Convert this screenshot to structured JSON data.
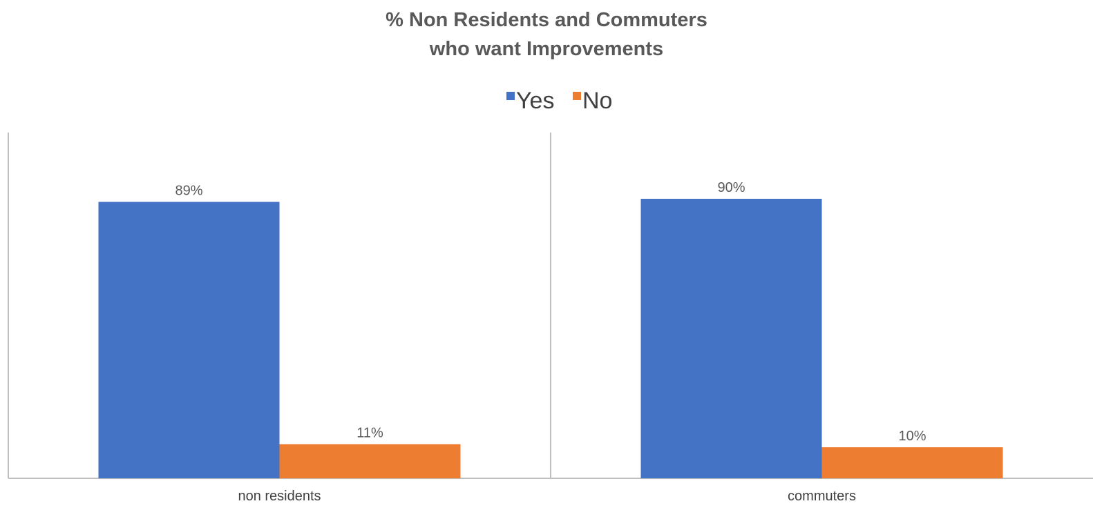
{
  "chart_data": {
    "type": "bar",
    "title": [
      "% Non Residents and Commuters",
      "who want Improvements"
    ],
    "xlabel": "",
    "ylabel": "",
    "categories": [
      "non residents",
      "commuters"
    ],
    "series": [
      {
        "name": "Yes",
        "color": "#4472C4",
        "values": [
          89,
          90
        ],
        "labels": [
          "89%",
          "90%"
        ]
      },
      {
        "name": "No",
        "color": "#ED7D31",
        "values": [
          11,
          10
        ],
        "labels": [
          "11%",
          "10%"
        ]
      }
    ],
    "ylim": [
      0,
      100
    ],
    "grid": false,
    "legend": "top-center"
  }
}
